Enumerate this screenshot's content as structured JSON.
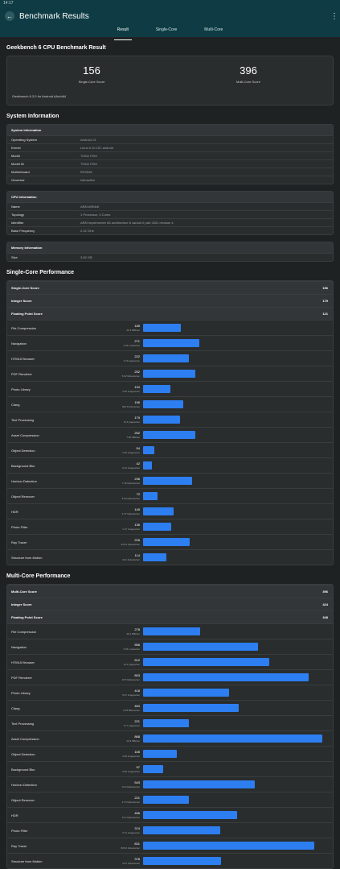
{
  "status": {
    "time": "14:17"
  },
  "header": {
    "title": "Benchmark Results"
  },
  "tabs": [
    {
      "label": "Result"
    },
    {
      "label": "Single-Core"
    },
    {
      "label": "Multi-Core"
    }
  ],
  "result": {
    "section_title": "Geekbench 6 CPU Benchmark Result",
    "single_score": "156",
    "single_label": "Single-Core Score",
    "multi_score": "396",
    "multi_label": "Multi-Core Score",
    "version": "Geekbench 6.3.0 for Android AArch64"
  },
  "system": {
    "title": "System Information",
    "groups": [
      {
        "header": "System Information",
        "rows": [
          {
            "k": "Operating System",
            "v": "Android 13"
          },
          {
            "k": "Kernel",
            "v": "Linux 5.10.157-android"
          },
          {
            "k": "Model",
            "v": "TOKA T094"
          },
          {
            "k": "Model ID",
            "v": "TOKA T094"
          },
          {
            "k": "Motherboard",
            "v": "RK3528"
          },
          {
            "k": "Governor",
            "v": "interactive"
          }
        ]
      },
      {
        "header": "CPU Information",
        "rows": [
          {
            "k": "Name",
            "v": "ARM ARMv8"
          },
          {
            "k": "Topology",
            "v": "1 Processor, 4 Cores"
          },
          {
            "k": "Identifier",
            "v": "ARM implementer 65 architecture 8 variant 0 part 3331 revision 4"
          },
          {
            "k": "Base Frequency",
            "v": "2.02 GHz"
          }
        ]
      },
      {
        "header": "Memory Information",
        "rows": [
          {
            "k": "Size",
            "v": "3.82 GB"
          }
        ]
      }
    ]
  },
  "single": {
    "title": "Single-Core Performance",
    "summary": [
      {
        "k": "Single-Core Score",
        "v": "156"
      },
      {
        "k": "Integer Score",
        "v": "179"
      },
      {
        "k": "Floating Point Score",
        "v": "121"
      }
    ],
    "max": 900,
    "rows": [
      {
        "name": "File Compression",
        "score": "185",
        "tp": "26.3 MB/sec",
        "v": 185
      },
      {
        "name": "Navigation",
        "score": "271",
        "tp": "1.63 routes/sec",
        "v": 271
      },
      {
        "name": "HTML5 Browser",
        "score": "222",
        "tp": "4.79 pages/sec",
        "v": 222
      },
      {
        "name": "PDF Renderer",
        "score": "252",
        "tp": "5.82 Mpixels/sec",
        "v": 252
      },
      {
        "name": "Photo Library",
        "score": "134",
        "tp": "1.83 images/sec",
        "v": 134
      },
      {
        "name": "Clang",
        "score": "196",
        "tp": "964.6 Klines/sec",
        "v": 196
      },
      {
        "name": "Text Processing",
        "score": "179",
        "tp": "14.6 pages/sec",
        "v": 179
      },
      {
        "name": "Asset Compression",
        "score": "252",
        "tp": "7.80 MB/sec",
        "v": 252
      },
      {
        "name": "Object Detection",
        "score": "54",
        "tp": "1.60 images/sec",
        "v": 54
      },
      {
        "name": "Background Blur",
        "score": "42",
        "tp": "0.15 images/sec",
        "v": 42
      },
      {
        "name": "Horizon Detection",
        "score": "236",
        "tp": "7.35 Mpixels/sec",
        "v": 236
      },
      {
        "name": "Object Remover",
        "score": "72",
        "tp": "5.54 Mpixels/sec",
        "v": 72
      },
      {
        "name": "HDR",
        "score": "149",
        "tp": "4.37 Mpixels/sec",
        "v": 149
      },
      {
        "name": "Photo Filter",
        "score": "136",
        "tp": "1.37 images/sec",
        "v": 136
      },
      {
        "name": "Ray Tracer",
        "score": "226",
        "tp": "219.6 Kpixels/sec",
        "v": 226
      },
      {
        "name": "Structure from Motion",
        "score": "114",
        "tp": "3.61 Kpixels/sec",
        "v": 114
      }
    ]
  },
  "multi": {
    "title": "Multi-Core Performance",
    "summary": [
      {
        "k": "Multi-Core Score",
        "v": "396"
      },
      {
        "k": "Integer Score",
        "v": "424"
      },
      {
        "k": "Floating Point Score",
        "v": "348"
      }
    ],
    "max": 900,
    "rows": [
      {
        "name": "File Compression",
        "score": "278",
        "tp": "39.4 MB/sec",
        "v": 278
      },
      {
        "name": "Navigation",
        "score": "556",
        "tp": "3.35 routes/sec",
        "v": 556
      },
      {
        "name": "HTML5 Browser",
        "score": "612",
        "tp": "13.2 pages/sec",
        "v": 612
      },
      {
        "name": "PDF Renderer",
        "score": "803",
        "tp": "18.5 Mpixels/sec",
        "v": 803
      },
      {
        "name": "Photo Library",
        "score": "418",
        "tp": "5.67 images/sec",
        "v": 418
      },
      {
        "name": "Clang",
        "score": "464",
        "tp": "2.28 Mlines/sec",
        "v": 464
      },
      {
        "name": "Text Processing",
        "score": "221",
        "tp": "17.7 pages/sec",
        "v": 221
      },
      {
        "name": "Asset Compression",
        "score": "868",
        "tp": "26.9 MB/sec",
        "v": 868
      },
      {
        "name": "Object Detection",
        "score": "165",
        "tp": "4.93 images/sec",
        "v": 165
      },
      {
        "name": "Background Blur",
        "score": "97",
        "tp": "0.36 images/sec",
        "v": 97
      },
      {
        "name": "Horizon Detection",
        "score": "543",
        "tp": "16.9 Mpixels/sec",
        "v": 543
      },
      {
        "name": "Object Remover",
        "score": "221",
        "tp": "17.0 Mpixels/sec",
        "v": 221
      },
      {
        "name": "HDR",
        "score": "456",
        "tp": "13.4 Mpixels/sec",
        "v": 456
      },
      {
        "name": "Photo Filter",
        "score": "374",
        "tp": "3.71 images/sec",
        "v": 374
      },
      {
        "name": "Ray Tracer",
        "score": "831",
        "tp": "805.6 Kpixels/sec",
        "v": 831
      },
      {
        "name": "Structure from Motion",
        "score": "378",
        "tp": "12.0 Kpixels/sec",
        "v": 378
      }
    ]
  }
}
